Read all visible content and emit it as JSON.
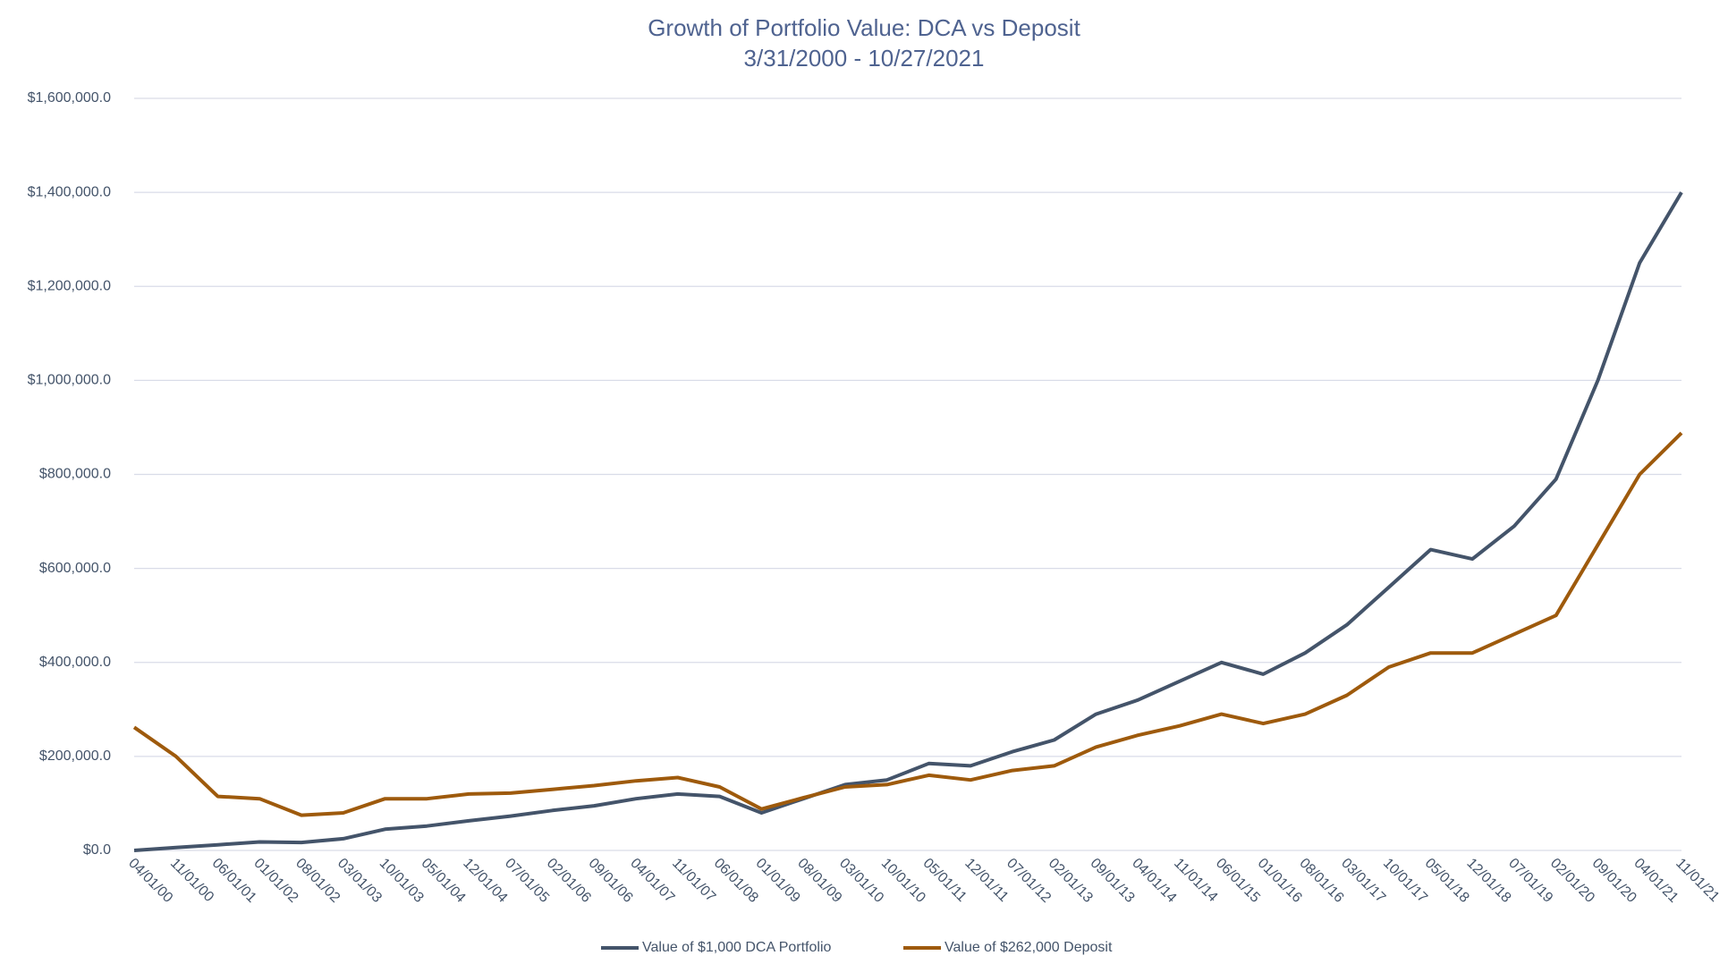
{
  "chart_data": {
    "type": "line",
    "title": "Growth of Portfolio Value: DCA vs Deposit",
    "subtitle": "3/31/2000 - 10/27/2021",
    "categories": [
      "04/01/00",
      "11/01/00",
      "06/01/01",
      "01/01/02",
      "08/01/02",
      "03/01/03",
      "10/01/03",
      "05/01/04",
      "12/01/04",
      "07/01/05",
      "02/01/06",
      "09/01/06",
      "04/01/07",
      "11/01/07",
      "06/01/08",
      "01/01/09",
      "08/01/09",
      "03/01/10",
      "10/01/10",
      "05/01/11",
      "12/01/11",
      "07/01/12",
      "02/01/13",
      "09/01/13",
      "04/01/14",
      "11/01/14",
      "06/01/15",
      "01/01/16",
      "08/01/16",
      "03/01/17",
      "10/01/17",
      "05/01/18",
      "12/01/18",
      "07/01/19",
      "02/01/20",
      "09/01/20",
      "04/01/21",
      "11/01/21"
    ],
    "series": [
      {
        "name": "Value of $1,000 DCA Portfolio",
        "color": "#44546a",
        "values": [
          0,
          6000,
          12000,
          18000,
          17000,
          25000,
          45000,
          52000,
          63000,
          73000,
          85000,
          95000,
          110000,
          120000,
          115000,
          80000,
          110000,
          140000,
          150000,
          185000,
          180000,
          210000,
          235000,
          290000,
          320000,
          360000,
          400000,
          375000,
          420000,
          480000,
          560000,
          640000,
          620000,
          690000,
          790000,
          1000000,
          1250000,
          1400000
        ]
      },
      {
        "name": "Value of $262,000 Deposit",
        "color": "#9e5a0c",
        "values": [
          262000,
          200000,
          115000,
          110000,
          75000,
          80000,
          110000,
          110000,
          120000,
          122000,
          130000,
          138000,
          148000,
          155000,
          135000,
          88000,
          112000,
          135000,
          140000,
          160000,
          150000,
          170000,
          180000,
          220000,
          245000,
          265000,
          290000,
          270000,
          290000,
          330000,
          390000,
          420000,
          420000,
          460000,
          500000,
          650000,
          800000,
          888000
        ]
      }
    ],
    "ylim": [
      0,
      1600000
    ],
    "yticks": [
      {
        "value": 0,
        "label": "$0.0"
      },
      {
        "value": 200000,
        "label": "$200,000.0"
      },
      {
        "value": 400000,
        "label": "$400,000.0"
      },
      {
        "value": 600000,
        "label": "$600,000.0"
      },
      {
        "value": 800000,
        "label": "$800,000.0"
      },
      {
        "value": 1000000,
        "label": "$1,000,000.0"
      },
      {
        "value": 1200000,
        "label": "$1,200,000.0"
      },
      {
        "value": 1400000,
        "label": "$1,400,000.0"
      },
      {
        "value": 1600000,
        "label": "$1,600,000.0"
      }
    ],
    "grid": true,
    "legend": "bottom"
  }
}
